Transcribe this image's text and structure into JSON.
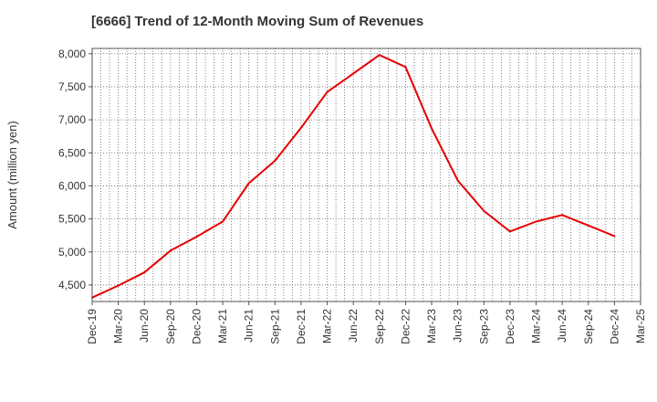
{
  "chart_data": {
    "type": "line",
    "title": "[6666]  Trend of 12-Month Moving Sum of Revenues",
    "xlabel": "",
    "ylabel": "Amount (million yen)",
    "ylim": [
      4250,
      8080
    ],
    "yticks": [
      "4,500",
      "5,000",
      "5,500",
      "6,000",
      "6,500",
      "7,000",
      "7,500",
      "8,000"
    ],
    "ytick_values": [
      4500,
      5000,
      5500,
      6000,
      6500,
      7000,
      7500,
      8000
    ],
    "categories": [
      "Dec-19",
      "Mar-20",
      "Jun-20",
      "Sep-20",
      "Dec-20",
      "Mar-21",
      "Jun-21",
      "Sep-21",
      "Dec-21",
      "Mar-22",
      "Jun-22",
      "Sep-22",
      "Dec-22",
      "Mar-23",
      "Jun-23",
      "Sep-23",
      "Dec-23",
      "Mar-24",
      "Jun-24",
      "Sep-24",
      "Dec-24",
      "Mar-25"
    ],
    "series": [
      {
        "color": "#e60000",
        "values": [
          4310,
          4490,
          4690,
          5020,
          5230,
          5460,
          6040,
          6380,
          6880,
          7420,
          7700,
          7980,
          7800,
          6870,
          6080,
          5620,
          5310,
          5460,
          5560,
          5400,
          5240,
          null
        ]
      }
    ],
    "grid": true,
    "grid_style": "dotted",
    "legend": "none"
  }
}
